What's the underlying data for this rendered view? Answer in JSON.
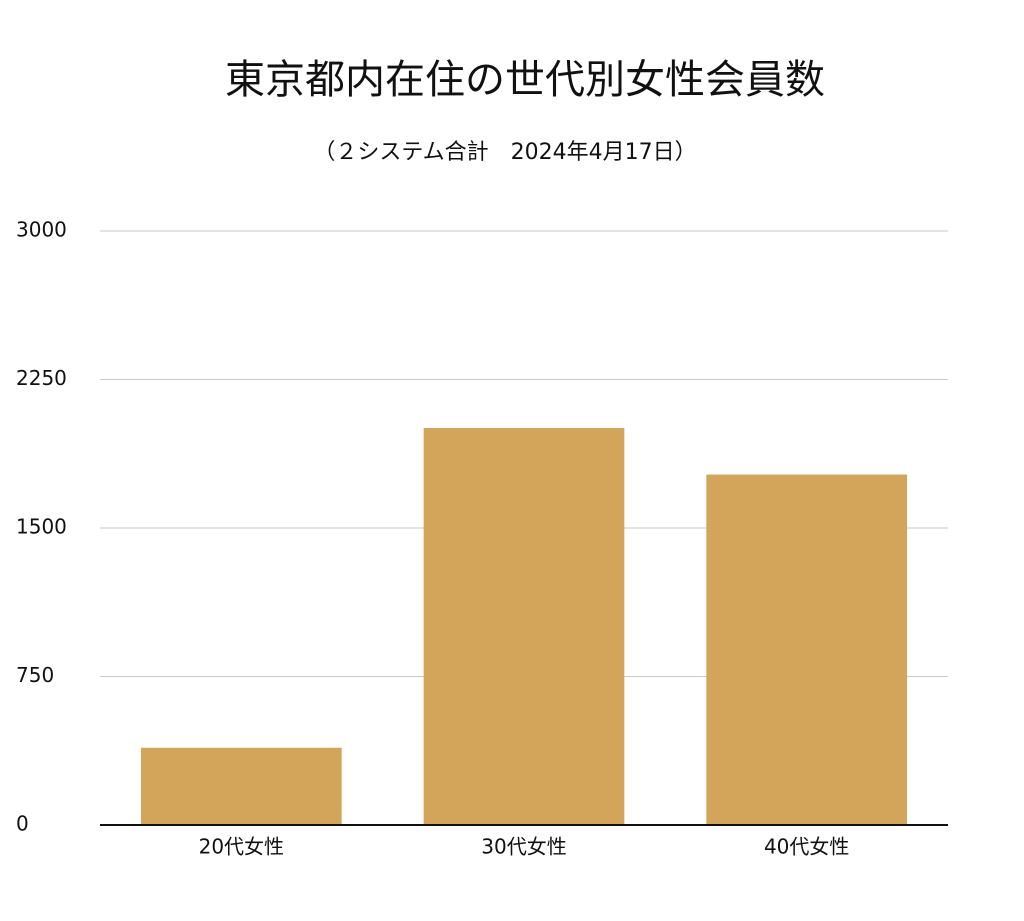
{
  "chart_data": {
    "type": "bar",
    "title": "東京都内在住の世代別女性会員数",
    "subtitle": "（２システム合計　2024年4月17日）",
    "categories": [
      "20代女性",
      "30代女性",
      "40代女性"
    ],
    "values": [
      390,
      2005,
      1770
    ],
    "color": "#d2a55b",
    "ylim": [
      0,
      3000
    ],
    "yticks": [
      0,
      750,
      1500,
      2250,
      3000
    ],
    "grid": true
  }
}
